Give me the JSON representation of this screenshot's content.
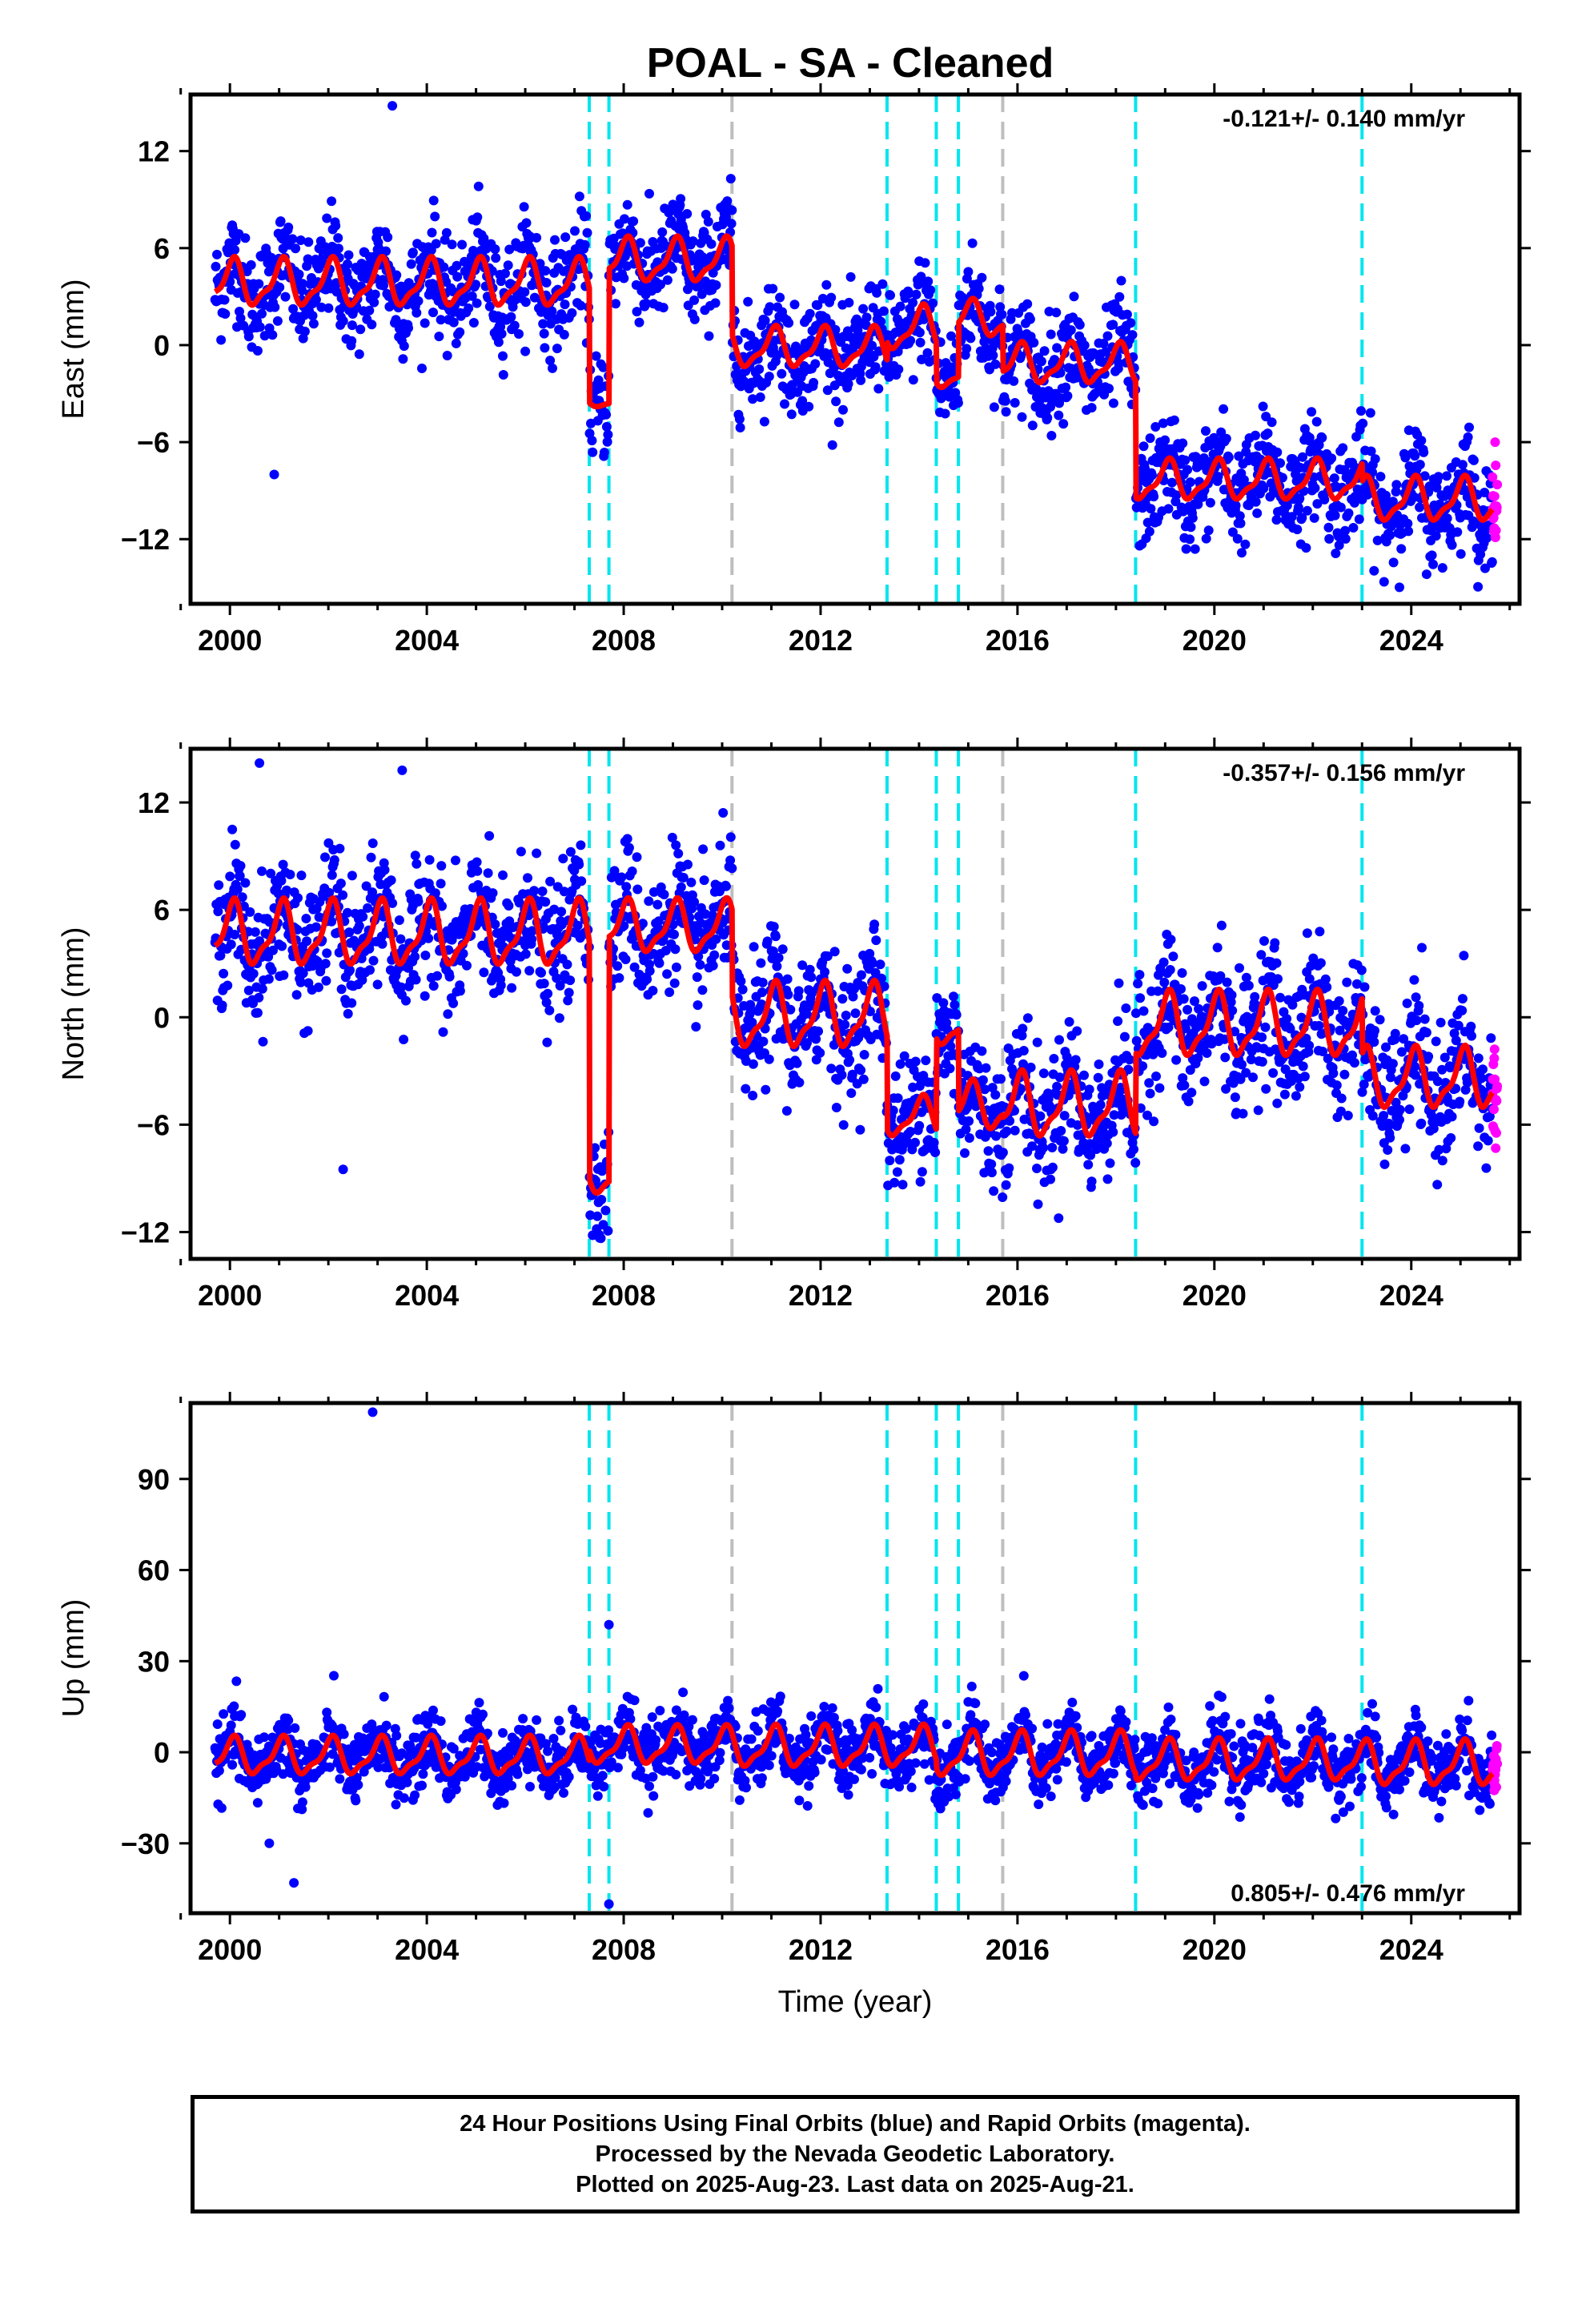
{
  "title": "POAL  - SA - Cleaned",
  "colors": {
    "final_orbits": "#0000ff",
    "rapid_orbits": "#ff00ff",
    "model": "#ff0000",
    "equipment_change": "#00e5ee",
    "other_offset": "#bebebe"
  },
  "xlabel": "Time (year)",
  "x_ticks": [
    "2000",
    "2004",
    "2008",
    "2012",
    "2016",
    "2020",
    "2024"
  ],
  "footer": {
    "line1": "24 Hour Positions Using Final Orbits (blue) and Rapid Orbits (magenta).",
    "line2": "Processed by the Nevada Geodetic Laboratory.",
    "line3": "Plotted on 2025-Aug-23. Last data on 2025-Aug-21."
  },
  "chart_data": [
    {
      "type": "scatter",
      "component": "East",
      "ylabel": "East (mm)",
      "rate": "-0.121+/- 0.140 mm/yr",
      "xlim": [
        1999.2,
        2026.2
      ],
      "ylim": [
        -16,
        15.5
      ],
      "y_ticks": [
        "12",
        "6",
        "0",
        "−6",
        "−12"
      ],
      "y_tick_values": [
        12,
        6,
        0,
        -6,
        -12
      ],
      "offsets_cyan": [
        2007.3,
        2007.7,
        2013.35,
        2014.35,
        2014.8,
        2018.4,
        2023.0
      ],
      "offsets_gray": [
        2010.2,
        2015.7
      ],
      "segments": [
        {
          "start": 1999.7,
          "end": 2007.3,
          "level": 3.8,
          "amp": 1.3
        },
        {
          "start": 2007.3,
          "end": 2007.7,
          "level": -3.5,
          "amp": 0.3
        },
        {
          "start": 2007.7,
          "end": 2010.2,
          "level": 5.2,
          "amp": 1.2
        },
        {
          "start": 2010.2,
          "end": 2013.35,
          "level": -0.2,
          "amp": 1.1
        },
        {
          "start": 2013.35,
          "end": 2014.35,
          "level": 1.0,
          "amp": 1.2
        },
        {
          "start": 2014.35,
          "end": 2014.8,
          "level": -1.8,
          "amp": 0.8
        },
        {
          "start": 2014.8,
          "end": 2015.7,
          "level": 1.6,
          "amp": 1.0
        },
        {
          "start": 2015.7,
          "end": 2018.4,
          "level": -1.2,
          "amp": 1.1
        },
        {
          "start": 2018.4,
          "end": 2023.0,
          "level": -8.4,
          "amp": 1.1
        },
        {
          "start": 2023.0,
          "end": 2025.65,
          "level": -9.6,
          "amp": 1.2
        }
      ],
      "noise": 1.6,
      "outliers": [
        [
          2003.3,
          14.8
        ],
        [
          2000.9,
          -8.0
        ],
        [
          2025.5,
          -13.8
        ]
      ]
    },
    {
      "type": "scatter",
      "component": "North",
      "ylabel": "North (mm)",
      "rate": "-0.357+/- 0.156 mm/yr",
      "xlim": [
        1999.2,
        2026.2
      ],
      "ylim": [
        -13.5,
        15
      ],
      "y_ticks": [
        "12",
        "6",
        "0",
        "−6",
        "−12"
      ],
      "y_tick_values": [
        12,
        6,
        0,
        -6,
        -12
      ],
      "offsets_cyan": [
        2007.3,
        2007.7,
        2013.35,
        2014.35,
        2014.8,
        2018.4,
        2023.0
      ],
      "offsets_gray": [
        2010.2,
        2015.7
      ],
      "segments": [
        {
          "start": 1999.7,
          "end": 2007.3,
          "level": 4.6,
          "amp": 1.6
        },
        {
          "start": 2007.3,
          "end": 2007.7,
          "level": -8.8,
          "amp": 1.0
        },
        {
          "start": 2007.7,
          "end": 2010.2,
          "level": 5.0,
          "amp": 1.3
        },
        {
          "start": 2010.2,
          "end": 2013.35,
          "level": 0.0,
          "amp": 1.6
        },
        {
          "start": 2013.35,
          "end": 2014.35,
          "level": -5.6,
          "amp": 1.0
        },
        {
          "start": 2014.35,
          "end": 2014.8,
          "level": -0.5,
          "amp": 1.0
        },
        {
          "start": 2014.8,
          "end": 2015.7,
          "level": -5.0,
          "amp": 1.2
        },
        {
          "start": 2015.7,
          "end": 2018.4,
          "level": -5.0,
          "amp": 1.6
        },
        {
          "start": 2018.4,
          "end": 2023.0,
          "level": -0.5,
          "amp": 1.6
        },
        {
          "start": 2023.0,
          "end": 2025.65,
          "level": -3.5,
          "amp": 1.5
        }
      ],
      "noise": 1.8,
      "outliers": [
        [
          2000.6,
          14.2
        ],
        [
          2003.5,
          13.8
        ],
        [
          2002.3,
          -8.5
        ]
      ]
    },
    {
      "type": "scatter",
      "component": "Up",
      "ylabel": "Up (mm)",
      "rate": "0.805+/- 0.476 mm/yr",
      "xlim": [
        1999.2,
        2026.2
      ],
      "ylim": [
        -53,
        115
      ],
      "y_ticks": [
        "90",
        "60",
        "30",
        "0",
        "−30"
      ],
      "y_tick_values": [
        90,
        60,
        30,
        0,
        -30
      ],
      "offsets_cyan": [
        2007.3,
        2007.7,
        2013.35,
        2014.35,
        2014.8,
        2018.4,
        2023.0
      ],
      "offsets_gray": [
        2010.2,
        2015.7
      ],
      "segments": [
        {
          "start": 1999.7,
          "end": 2007.3,
          "level": -1.5,
          "amp": 5.5
        },
        {
          "start": 2007.3,
          "end": 2010.2,
          "level": 2.0,
          "amp": 5.5
        },
        {
          "start": 2010.2,
          "end": 2014.35,
          "level": 1.5,
          "amp": 6.0
        },
        {
          "start": 2014.35,
          "end": 2018.4,
          "level": -1.0,
          "amp": 6.5
        },
        {
          "start": 2018.4,
          "end": 2023.0,
          "level": -3.0,
          "amp": 6.0
        },
        {
          "start": 2023.0,
          "end": 2025.65,
          "level": -4.0,
          "amp": 6.5
        }
      ],
      "noise": 5.5,
      "outliers": [
        [
          2002.9,
          112
        ],
        [
          2007.7,
          42
        ],
        [
          2001.3,
          -43
        ],
        [
          2007.7,
          -50
        ],
        [
          2000.8,
          -30
        ]
      ]
    }
  ]
}
